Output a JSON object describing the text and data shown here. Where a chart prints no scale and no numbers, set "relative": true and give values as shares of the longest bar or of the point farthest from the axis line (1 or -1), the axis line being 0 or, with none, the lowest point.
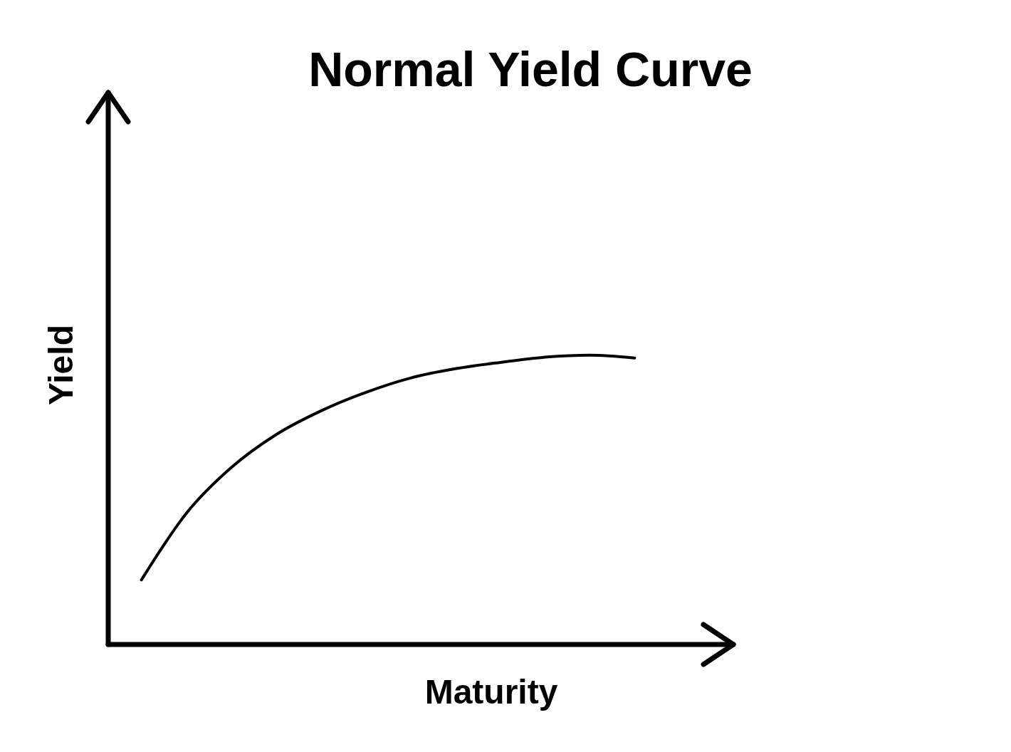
{
  "chart_data": {
    "type": "line",
    "title": "Normal Yield Curve",
    "xlabel": "Maturity",
    "ylabel": "Yield",
    "relative": true,
    "categories": [
      null,
      null,
      null,
      null,
      null,
      null,
      null,
      null,
      null,
      null,
      null,
      null
    ],
    "series": [
      {
        "color": "#000000",
        "values": [
          0.223,
          0.453,
          0.611,
          0.725,
          0.807,
          0.871,
          0.921,
          0.953,
          0.975,
          0.993,
          1,
          0.99
        ]
      }
    ],
    "marker": "none",
    "line_style": "solid",
    "grid": false
  }
}
